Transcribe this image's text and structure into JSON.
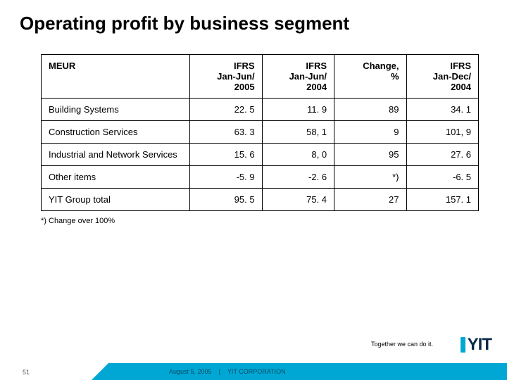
{
  "title": "Operating profit by business segment",
  "table": {
    "headers": [
      "MEUR",
      "IFRS\nJan-Jun/\n2005",
      "IFRS\nJan-Jun/\n2004",
      "Change,\n%",
      "IFRS\nJan-Dec/\n2004"
    ],
    "rows": [
      {
        "label": "Building Systems",
        "v1": "22. 5",
        "v2": "11. 9",
        "v3": "89",
        "v4": "34. 1"
      },
      {
        "label": "Construction Services",
        "v1": "63. 3",
        "v2": "58, 1",
        "v3": "9",
        "v4": "101, 9"
      },
      {
        "label": "Industrial and Network Services",
        "v1": "15. 6",
        "v2": "8, 0",
        "v3": "95",
        "v4": "27. 6"
      },
      {
        "label": "Other items",
        "v1": "-5. 9",
        "v2": "-2. 6",
        "v3": "*)",
        "v4": "-6. 5"
      },
      {
        "label": "YIT Group total",
        "v1": "95. 5",
        "v2": "75. 4",
        "v3": "27",
        "v4": "157. 1"
      }
    ]
  },
  "note": "*) Change over 100%",
  "tagline": "Together we can do it.",
  "logo_text": "YIT",
  "footer": {
    "date": "August 5, 2005",
    "company": "YIT CORPORATION"
  },
  "page_number": "51",
  "colors": {
    "accent": "#00a7d4",
    "logo": "#0b2b4a",
    "border": "#000000",
    "bg": "#ffffff"
  }
}
